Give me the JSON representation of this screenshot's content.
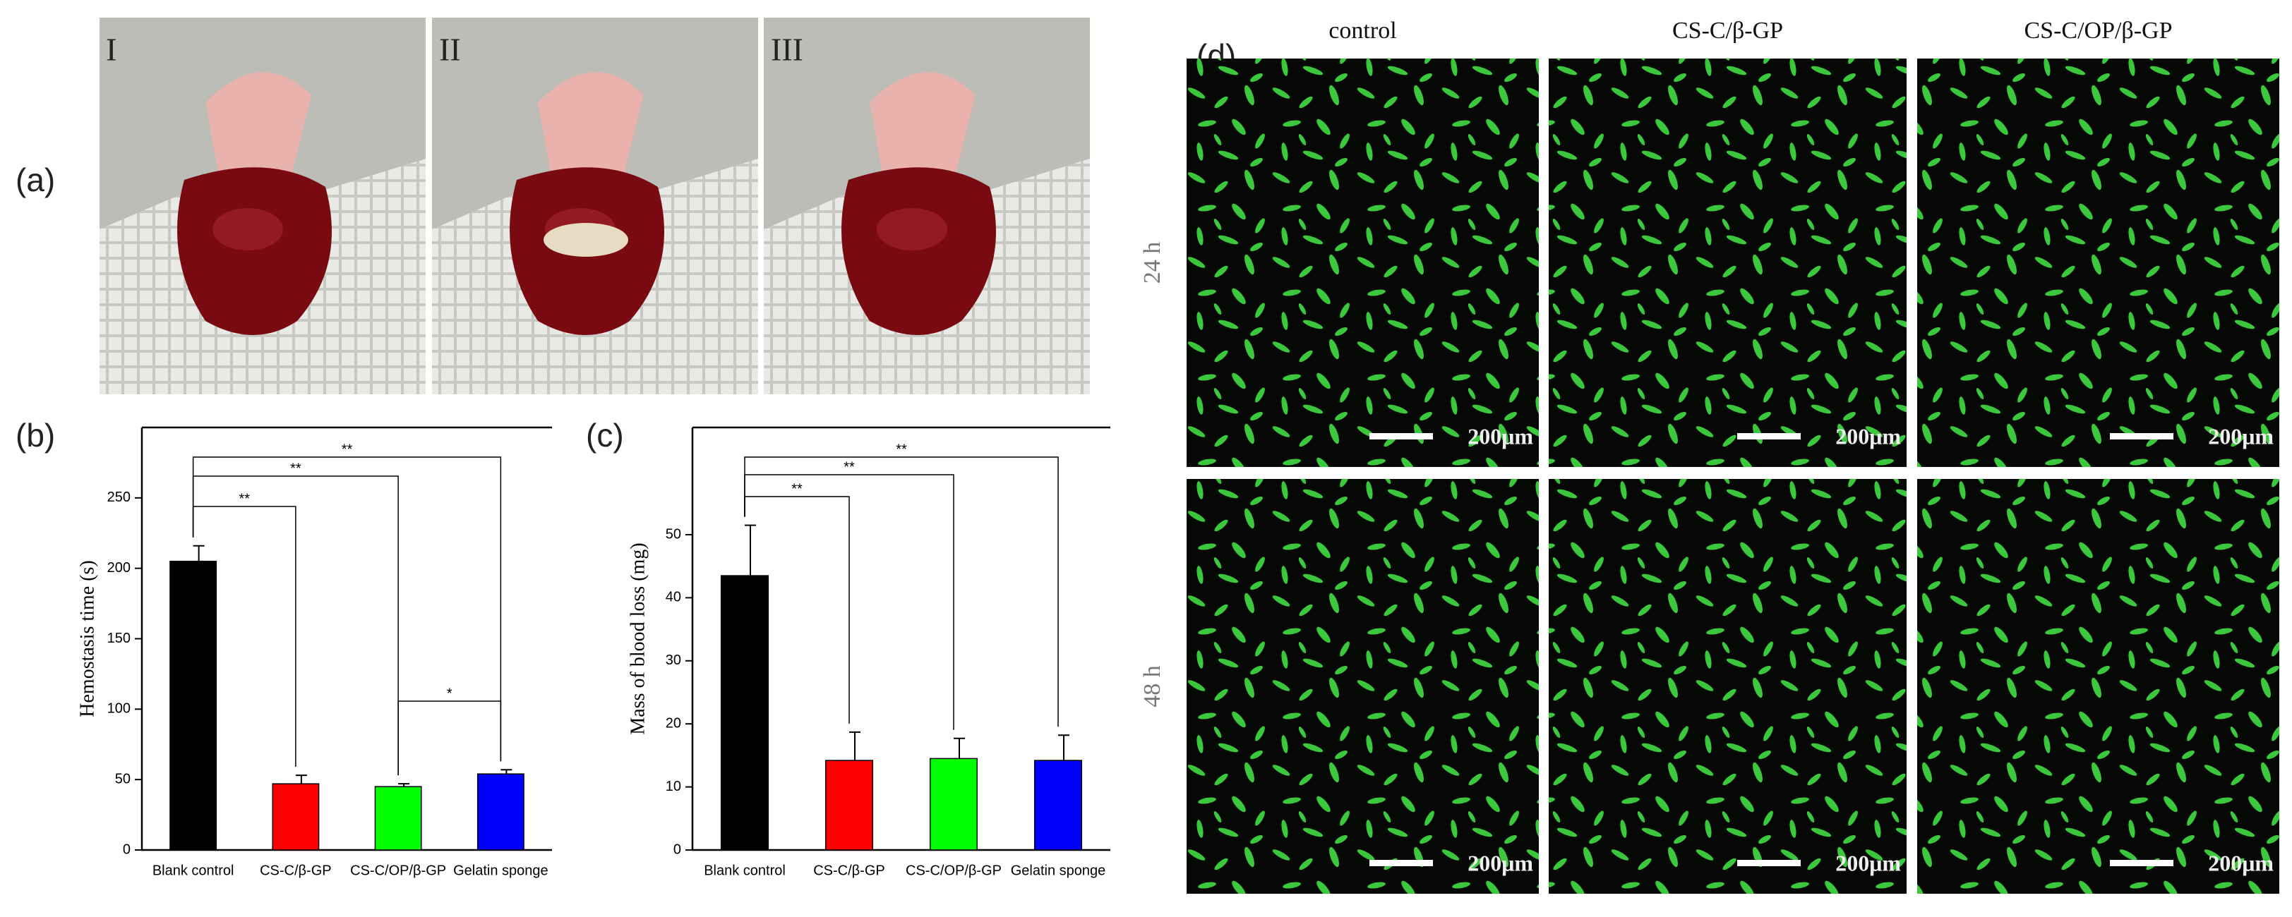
{
  "panel_labels": [
    "(a)",
    "(b)",
    "(c)",
    "(d)"
  ],
  "photo_labels": [
    "I",
    "II",
    "III"
  ],
  "micrographs": {
    "columns": [
      "control",
      "CS-C/β-GP",
      "CS-C/OP/β-GP"
    ],
    "rows": [
      "24 h",
      "48 h"
    ],
    "scale_bars": [
      [
        "200μm",
        "200μm",
        "200μm"
      ],
      [
        "200μm",
        "200μm",
        "200μm"
      ]
    ]
  },
  "chart_data": [
    {
      "type": "bar",
      "ylabel": "Hemostasis time (s)",
      "categories": [
        "Blank control",
        "CS-C/β-GP",
        "CS-C/OP/β-GP",
        "Gelatin sponge"
      ],
      "values": [
        205,
        47,
        45,
        54
      ],
      "errors": [
        11,
        6,
        2,
        3
      ],
      "colors": [
        "#000000",
        "#ff0000",
        "#00ff00",
        "#0000ff"
      ],
      "ylim": [
        0,
        300
      ],
      "yticks": [
        0,
        50,
        100,
        150,
        200,
        250
      ],
      "annotations": [
        {
          "text": "**",
          "from": 0,
          "to": 1
        },
        {
          "text": "**",
          "from": 0,
          "to": 2
        },
        {
          "text": "**",
          "from": 0,
          "to": 3
        },
        {
          "text": "*",
          "from": 2,
          "to": 3
        }
      ]
    },
    {
      "type": "bar",
      "ylabel": "Mass of blood loss (mg)",
      "categories": [
        "Blank control",
        "CS-C/β-GP",
        "CS-C/OP/β-GP",
        "Gelatin sponge"
      ],
      "values": [
        43.5,
        14.2,
        14.5,
        14.2
      ],
      "errors": [
        8,
        4.5,
        3.2,
        4
      ],
      "colors": [
        "#000000",
        "#ff0000",
        "#00ff00",
        "#0000ff"
      ],
      "ylim": [
        0,
        67
      ],
      "yticks": [
        0,
        10,
        20,
        30,
        40,
        50
      ],
      "annotations": [
        {
          "text": "**",
          "from": 0,
          "to": 1
        },
        {
          "text": "**",
          "from": 0,
          "to": 2
        },
        {
          "text": "**",
          "from": 0,
          "to": 3
        }
      ]
    }
  ]
}
